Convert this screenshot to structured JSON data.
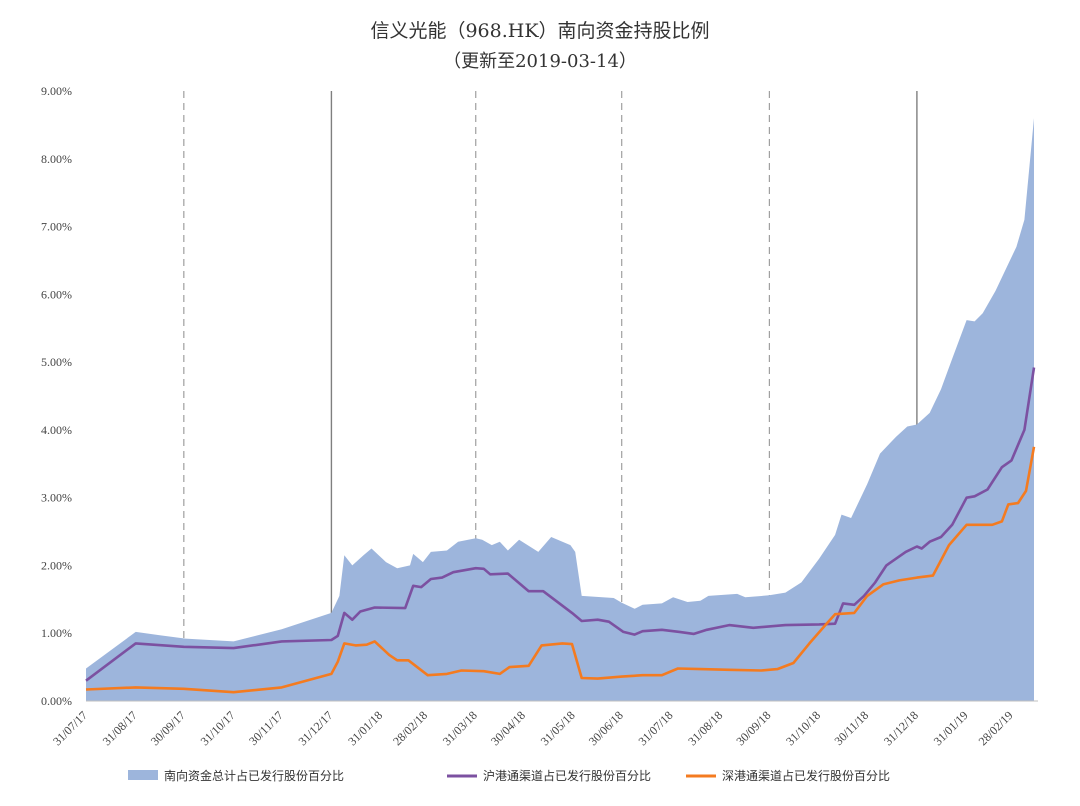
{
  "chart_data": {
    "type": "area",
    "title": "信义光能（968.HK）南向资金持股比例",
    "subtitle": "（更新至2019-03-14）",
    "xlabel": "",
    "ylabel": "",
    "ylim": [
      0,
      9
    ],
    "yticks": [
      "0.00%",
      "1.00%",
      "2.00%",
      "3.00%",
      "4.00%",
      "5.00%",
      "6.00%",
      "7.00%",
      "8.00%",
      "9.00%"
    ],
    "xticks": [
      {
        "label": "31/07/17",
        "x": "2017-07-31"
      },
      {
        "label": "31/08/17",
        "x": "2017-08-31"
      },
      {
        "label": "30/09/17",
        "x": "2017-09-30"
      },
      {
        "label": "31/10/17",
        "x": "2017-10-31"
      },
      {
        "label": "30/11/17",
        "x": "2017-11-30"
      },
      {
        "label": "31/12/17",
        "x": "2017-12-31"
      },
      {
        "label": "31/01/18",
        "x": "2018-01-31"
      },
      {
        "label": "28/02/18",
        "x": "2018-02-28"
      },
      {
        "label": "31/03/18",
        "x": "2018-03-31"
      },
      {
        "label": "30/04/18",
        "x": "2018-04-30"
      },
      {
        "label": "31/05/18",
        "x": "2018-05-31"
      },
      {
        "label": "30/06/18",
        "x": "2018-06-30"
      },
      {
        "label": "31/07/18",
        "x": "2018-07-31"
      },
      {
        "label": "31/08/18",
        "x": "2018-08-31"
      },
      {
        "label": "30/09/18",
        "x": "2018-09-30"
      },
      {
        "label": "31/10/18",
        "x": "2018-10-31"
      },
      {
        "label": "30/11/18",
        "x": "2018-11-30"
      },
      {
        "label": "31/12/18",
        "x": "2018-12-31"
      },
      {
        "label": "31/01/19",
        "x": "2019-01-31"
      },
      {
        "label": "28/02/19",
        "x": "2019-02-28"
      }
    ],
    "x_range": [
      "2017-07-31",
      "2019-03-14"
    ],
    "vlines": [
      {
        "x": "2017-09-30",
        "style": "dashed"
      },
      {
        "x": "2017-12-31",
        "style": "solid"
      },
      {
        "x": "2018-03-31",
        "style": "dashed"
      },
      {
        "x": "2018-06-30",
        "style": "dashed"
      },
      {
        "x": "2018-09-30",
        "style": "dashed"
      },
      {
        "x": "2018-12-31",
        "style": "solid"
      }
    ],
    "grid": false,
    "legend_position": "bottom",
    "series": [
      {
        "name": "南向资金总计占已发行股份百分比",
        "kind": "area",
        "color": "#9db5dc",
        "points": [
          [
            "2017-07-31",
            0.48
          ],
          [
            "2017-08-31",
            1.02
          ],
          [
            "2017-09-15",
            0.97
          ],
          [
            "2017-10-01",
            0.92
          ],
          [
            "2017-10-31",
            0.88
          ],
          [
            "2017-11-30",
            1.06
          ],
          [
            "2017-12-31",
            1.3
          ],
          [
            "2018-01-05",
            1.55
          ],
          [
            "2018-01-08",
            2.15
          ],
          [
            "2018-01-13",
            2.0
          ],
          [
            "2018-01-20",
            2.15
          ],
          [
            "2018-01-25",
            2.25
          ],
          [
            "2018-02-03",
            2.05
          ],
          [
            "2018-02-10",
            1.96
          ],
          [
            "2018-02-18",
            2.0
          ],
          [
            "2018-02-20",
            2.17
          ],
          [
            "2018-02-26",
            2.05
          ],
          [
            "2018-03-03",
            2.2
          ],
          [
            "2018-03-13",
            2.22
          ],
          [
            "2018-03-20",
            2.35
          ],
          [
            "2018-03-31",
            2.4
          ],
          [
            "2018-04-04",
            2.38
          ],
          [
            "2018-04-10",
            2.3
          ],
          [
            "2018-04-15",
            2.35
          ],
          [
            "2018-04-20",
            2.22
          ],
          [
            "2018-04-27",
            2.38
          ],
          [
            "2018-05-09",
            2.2
          ],
          [
            "2018-05-17",
            2.42
          ],
          [
            "2018-05-29",
            2.3
          ],
          [
            "2018-06-01",
            2.2
          ],
          [
            "2018-06-05",
            1.55
          ],
          [
            "2018-06-25",
            1.52
          ],
          [
            "2018-06-30",
            1.45
          ],
          [
            "2018-07-08",
            1.36
          ],
          [
            "2018-07-13",
            1.42
          ],
          [
            "2018-07-25",
            1.44
          ],
          [
            "2018-08-01",
            1.53
          ],
          [
            "2018-08-10",
            1.46
          ],
          [
            "2018-08-18",
            1.48
          ],
          [
            "2018-08-23",
            1.55
          ],
          [
            "2018-09-10",
            1.58
          ],
          [
            "2018-09-15",
            1.53
          ],
          [
            "2018-09-30",
            1.56
          ],
          [
            "2018-10-10",
            1.6
          ],
          [
            "2018-10-20",
            1.75
          ],
          [
            "2018-10-31",
            2.1
          ],
          [
            "2018-11-10",
            2.45
          ],
          [
            "2018-11-14",
            2.75
          ],
          [
            "2018-11-20",
            2.7
          ],
          [
            "2018-11-30",
            3.2
          ],
          [
            "2018-12-08",
            3.65
          ],
          [
            "2018-12-18",
            3.9
          ],
          [
            "2018-12-25",
            4.05
          ],
          [
            "2018-12-31",
            4.08
          ],
          [
            "2019-01-08",
            4.25
          ],
          [
            "2019-01-15",
            4.6
          ],
          [
            "2019-01-22",
            5.05
          ],
          [
            "2019-01-31",
            5.62
          ],
          [
            "2019-02-05",
            5.6
          ],
          [
            "2019-02-10",
            5.72
          ],
          [
            "2019-02-18",
            6.05
          ],
          [
            "2019-02-25",
            6.4
          ],
          [
            "2019-03-03",
            6.7
          ],
          [
            "2019-03-08",
            7.1
          ],
          [
            "2019-03-14",
            8.6
          ]
        ]
      },
      {
        "name": "沪港通渠道占已发行股份百分比",
        "kind": "line",
        "color": "#7c51a1",
        "points": [
          [
            "2017-07-31",
            0.3
          ],
          [
            "2017-08-31",
            0.85
          ],
          [
            "2017-09-30",
            0.8
          ],
          [
            "2017-10-31",
            0.78
          ],
          [
            "2017-11-30",
            0.88
          ],
          [
            "2017-12-31",
            0.9
          ],
          [
            "2018-01-04",
            0.96
          ],
          [
            "2018-01-08",
            1.3
          ],
          [
            "2018-01-13",
            1.2
          ],
          [
            "2018-01-18",
            1.32
          ],
          [
            "2018-01-27",
            1.38
          ],
          [
            "2018-02-15",
            1.37
          ],
          [
            "2018-02-20",
            1.7
          ],
          [
            "2018-02-25",
            1.68
          ],
          [
            "2018-03-03",
            1.8
          ],
          [
            "2018-03-10",
            1.82
          ],
          [
            "2018-03-17",
            1.9
          ],
          [
            "2018-03-31",
            1.96
          ],
          [
            "2018-04-05",
            1.95
          ],
          [
            "2018-04-09",
            1.87
          ],
          [
            "2018-04-20",
            1.88
          ],
          [
            "2018-05-03",
            1.62
          ],
          [
            "2018-05-12",
            1.62
          ],
          [
            "2018-05-30",
            1.3
          ],
          [
            "2018-06-05",
            1.18
          ],
          [
            "2018-06-15",
            1.2
          ],
          [
            "2018-06-22",
            1.17
          ],
          [
            "2018-07-01",
            1.02
          ],
          [
            "2018-07-08",
            0.98
          ],
          [
            "2018-07-13",
            1.03
          ],
          [
            "2018-07-25",
            1.05
          ],
          [
            "2018-08-05",
            1.02
          ],
          [
            "2018-08-14",
            0.99
          ],
          [
            "2018-08-22",
            1.05
          ],
          [
            "2018-09-05",
            1.12
          ],
          [
            "2018-09-20",
            1.08
          ],
          [
            "2018-09-30",
            1.1
          ],
          [
            "2018-10-10",
            1.12
          ],
          [
            "2018-10-31",
            1.13
          ],
          [
            "2018-11-10",
            1.14
          ],
          [
            "2018-11-15",
            1.44
          ],
          [
            "2018-11-22",
            1.42
          ],
          [
            "2018-11-28",
            1.55
          ],
          [
            "2018-12-05",
            1.75
          ],
          [
            "2018-12-12",
            2.0
          ],
          [
            "2018-12-24",
            2.2
          ],
          [
            "2018-12-31",
            2.28
          ],
          [
            "2019-01-03",
            2.25
          ],
          [
            "2019-01-08",
            2.35
          ],
          [
            "2019-01-15",
            2.42
          ],
          [
            "2019-01-22",
            2.6
          ],
          [
            "2019-01-31",
            3.0
          ],
          [
            "2019-02-05",
            3.02
          ],
          [
            "2019-02-13",
            3.12
          ],
          [
            "2019-02-22",
            3.45
          ],
          [
            "2019-02-28",
            3.55
          ],
          [
            "2019-03-08",
            4.0
          ],
          [
            "2019-03-14",
            4.92
          ]
        ]
      },
      {
        "name": "深港通渠道占已发行股份百分比",
        "kind": "line",
        "color": "#f47b20",
        "points": [
          [
            "2017-07-31",
            0.17
          ],
          [
            "2017-08-31",
            0.2
          ],
          [
            "2017-09-30",
            0.18
          ],
          [
            "2017-10-31",
            0.13
          ],
          [
            "2017-11-30",
            0.2
          ],
          [
            "2017-12-31",
            0.4
          ],
          [
            "2018-01-04",
            0.58
          ],
          [
            "2018-01-08",
            0.85
          ],
          [
            "2018-01-15",
            0.82
          ],
          [
            "2018-01-22",
            0.83
          ],
          [
            "2018-01-27",
            0.88
          ],
          [
            "2018-02-05",
            0.68
          ],
          [
            "2018-02-10",
            0.6
          ],
          [
            "2018-02-17",
            0.6
          ],
          [
            "2018-03-01",
            0.38
          ],
          [
            "2018-03-13",
            0.4
          ],
          [
            "2018-03-22",
            0.45
          ],
          [
            "2018-04-05",
            0.44
          ],
          [
            "2018-04-15",
            0.4
          ],
          [
            "2018-04-21",
            0.5
          ],
          [
            "2018-05-03",
            0.52
          ],
          [
            "2018-05-11",
            0.82
          ],
          [
            "2018-05-24",
            0.85
          ],
          [
            "2018-05-30",
            0.84
          ],
          [
            "2018-06-05",
            0.34
          ],
          [
            "2018-06-15",
            0.33
          ],
          [
            "2018-06-30",
            0.36
          ],
          [
            "2018-07-13",
            0.38
          ],
          [
            "2018-07-25",
            0.38
          ],
          [
            "2018-08-04",
            0.48
          ],
          [
            "2018-08-18",
            0.47
          ],
          [
            "2018-09-05",
            0.46
          ],
          [
            "2018-09-25",
            0.45
          ],
          [
            "2018-10-05",
            0.47
          ],
          [
            "2018-10-15",
            0.56
          ],
          [
            "2018-10-25",
            0.85
          ],
          [
            "2018-11-05",
            1.15
          ],
          [
            "2018-11-10",
            1.28
          ],
          [
            "2018-11-22",
            1.3
          ],
          [
            "2018-11-30",
            1.55
          ],
          [
            "2018-12-10",
            1.72
          ],
          [
            "2018-12-20",
            1.78
          ],
          [
            "2018-12-31",
            1.82
          ],
          [
            "2019-01-10",
            1.85
          ],
          [
            "2019-01-20",
            2.3
          ],
          [
            "2019-01-31",
            2.6
          ],
          [
            "2019-02-08",
            2.6
          ],
          [
            "2019-02-16",
            2.6
          ],
          [
            "2019-02-22",
            2.65
          ],
          [
            "2019-02-26",
            2.9
          ],
          [
            "2019-03-04",
            2.92
          ],
          [
            "2019-03-09",
            3.1
          ],
          [
            "2019-03-14",
            3.75
          ]
        ]
      }
    ]
  }
}
